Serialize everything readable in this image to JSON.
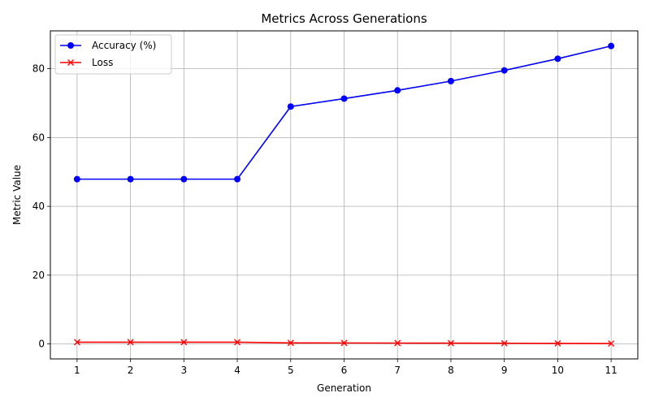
{
  "chart_data": {
    "type": "line",
    "title": "Metrics Across Generations",
    "xlabel": "Generation",
    "ylabel": "Metric Value",
    "x": [
      1,
      2,
      3,
      4,
      5,
      6,
      7,
      8,
      9,
      10,
      11
    ],
    "xlim": [
      0.5,
      11.5
    ],
    "ylim": [
      -4.34,
      91.0
    ],
    "yticks": [
      0,
      20,
      40,
      60,
      80
    ],
    "grid": true,
    "legend_position": "upper left",
    "series": [
      {
        "name": "Accuracy (%)",
        "color": "#0000ff",
        "marker": "circle",
        "values": [
          47.9,
          47.9,
          47.9,
          47.9,
          69.0,
          71.3,
          73.7,
          76.4,
          79.5,
          82.9,
          86.6
        ]
      },
      {
        "name": "Loss",
        "color": "#ff0000",
        "marker": "x",
        "values": [
          0.52,
          0.52,
          0.52,
          0.52,
          0.31,
          0.29,
          0.26,
          0.24,
          0.21,
          0.17,
          0.13
        ]
      }
    ]
  }
}
